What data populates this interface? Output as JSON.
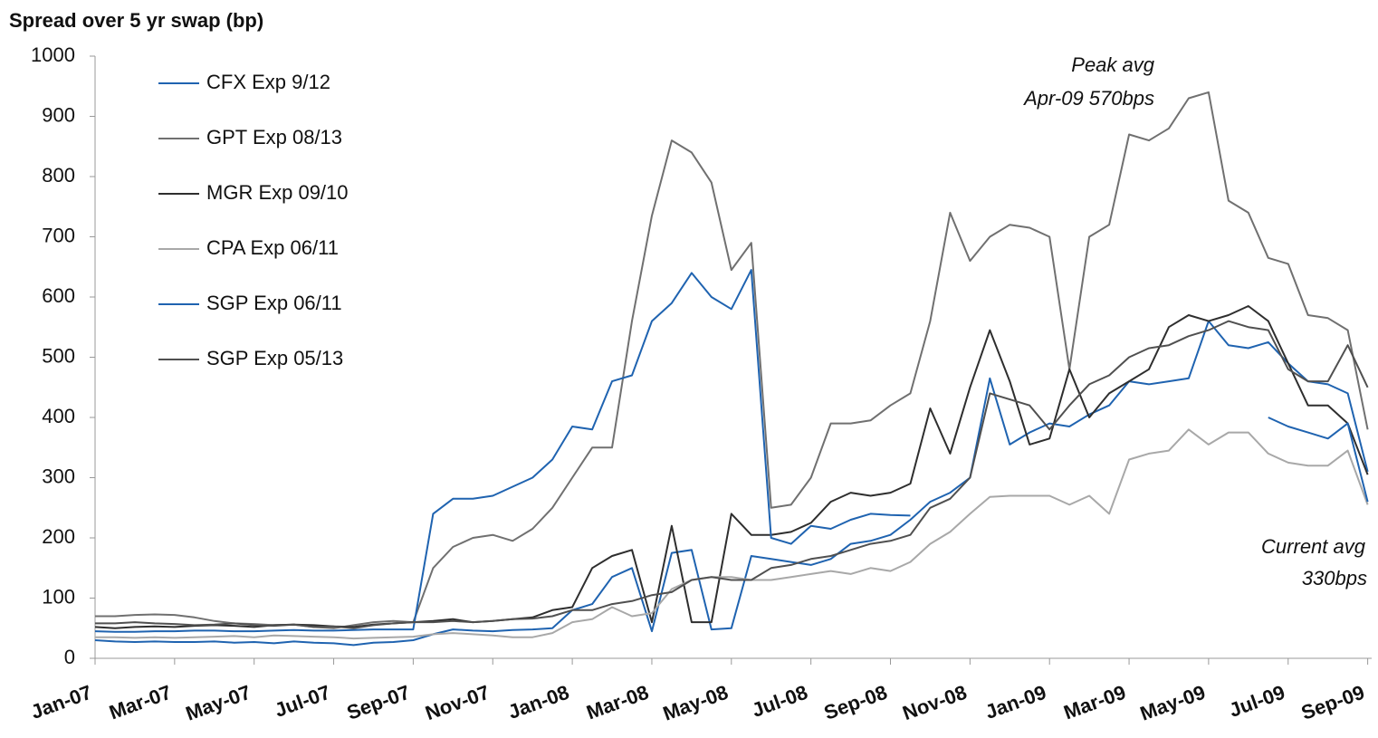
{
  "chart_data": {
    "type": "line",
    "title": "Spread over 5 yr swap (bp)",
    "annotations": [
      "Peak avg",
      "Apr-09 570bps",
      "Current avg",
      "330bps"
    ],
    "x": [
      0,
      0.5,
      1,
      1.5,
      2,
      2.5,
      3,
      3.5,
      4,
      4.5,
      5,
      5.5,
      6,
      6.5,
      7,
      7.5,
      8,
      8.5,
      9,
      9.5,
      10,
      10.5,
      11,
      11.5,
      12,
      12.5,
      13,
      13.5,
      14,
      14.5,
      15,
      15.5,
      16,
      16.5,
      17,
      17.5,
      18,
      18.5,
      19,
      19.5,
      20,
      20.5,
      21,
      21.5,
      22,
      22.5,
      23,
      23.5,
      24,
      24.5,
      25,
      25.5,
      26,
      26.5,
      27,
      27.5,
      28,
      28.5,
      29,
      29.5,
      30,
      30.5,
      31,
      31.5,
      32
    ],
    "xlim": [
      0,
      32.1
    ],
    "xticks": [
      {
        "value": 0,
        "label": "Jan-07"
      },
      {
        "value": 2,
        "label": "Mar-07"
      },
      {
        "value": 4,
        "label": "May-07"
      },
      {
        "value": 6,
        "label": "Jul-07"
      },
      {
        "value": 8,
        "label": "Sep-07"
      },
      {
        "value": 10,
        "label": "Nov-07"
      },
      {
        "value": 12,
        "label": "Jan-08"
      },
      {
        "value": 14,
        "label": "Mar-08"
      },
      {
        "value": 16,
        "label": "May-08"
      },
      {
        "value": 18,
        "label": "Jul-08"
      },
      {
        "value": 20,
        "label": "Sep-08"
      },
      {
        "value": 22,
        "label": "Nov-08"
      },
      {
        "value": 24,
        "label": "Jan-09"
      },
      {
        "value": 26,
        "label": "Mar-09"
      },
      {
        "value": 28,
        "label": "May-09"
      },
      {
        "value": 30,
        "label": "Jul-09"
      },
      {
        "value": 32,
        "label": "Sep-09"
      }
    ],
    "ylim": [
      0,
      1000
    ],
    "yticks": [
      0,
      100,
      200,
      300,
      400,
      500,
      600,
      700,
      800,
      900,
      1000
    ],
    "legend": "upper left",
    "series": [
      {
        "name": "CFX Exp 9/12",
        "color": "#1f63b0",
        "values": [
          30,
          28,
          27,
          28,
          27,
          27,
          28,
          26,
          27,
          25,
          28,
          26,
          25,
          22,
          26,
          27,
          30,
          40,
          48,
          46,
          45,
          47,
          48,
          50,
          80,
          90,
          135,
          150,
          45,
          175,
          180,
          48,
          50,
          170,
          165,
          160,
          155,
          165,
          190,
          195,
          205,
          230,
          260,
          275,
          300,
          465,
          355,
          375,
          390,
          385,
          405,
          420,
          460,
          455,
          460,
          465,
          560,
          520,
          515,
          525,
          490,
          460,
          455,
          440,
          310
        ]
      },
      {
        "name": "GPT Exp 08/13",
        "color": "#707070",
        "values": [
          70,
          70,
          72,
          73,
          72,
          68,
          62,
          58,
          57,
          55,
          56,
          52,
          50,
          55,
          60,
          62,
          60,
          150,
          185,
          200,
          205,
          195,
          215,
          250,
          300,
          350,
          350,
          560,
          735,
          860,
          840,
          790,
          645,
          690,
          250,
          255,
          300,
          390,
          390,
          395,
          420,
          440,
          560,
          740,
          660,
          700,
          720,
          715,
          700,
          480,
          700,
          720,
          870,
          860,
          880,
          930,
          940,
          760,
          740,
          665,
          655,
          570,
          565,
          545,
          380
        ]
      },
      {
        "name": "MGR Exp 09/10",
        "color": "#2e2e2e",
        "values": [
          52,
          50,
          52,
          53,
          52,
          54,
          55,
          54,
          52,
          55,
          56,
          55,
          53,
          52,
          56,
          58,
          60,
          62,
          65,
          60,
          62,
          65,
          68,
          80,
          85,
          150,
          170,
          180,
          60,
          220,
          60,
          60,
          240,
          205,
          205,
          210,
          225,
          260,
          275,
          270,
          275,
          290,
          415,
          340,
          450,
          545,
          460,
          355,
          365,
          480,
          400,
          440,
          460,
          480,
          550,
          570,
          560,
          570,
          585,
          560,
          490,
          420,
          420,
          390,
          305
        ]
      },
      {
        "name": "CPA Exp 06/11",
        "color": "#a8a8a8",
        "values": [
          35,
          35,
          34,
          35,
          34,
          35,
          36,
          37,
          35,
          38,
          37,
          36,
          35,
          33,
          34,
          35,
          36,
          40,
          42,
          40,
          38,
          35,
          35,
          42,
          60,
          65,
          85,
          70,
          75,
          115,
          130,
          135,
          135,
          130,
          130,
          135,
          140,
          145,
          140,
          150,
          145,
          160,
          190,
          210,
          240,
          268,
          270,
          270,
          270,
          255,
          270,
          240,
          330,
          340,
          345,
          380,
          355,
          375,
          375,
          340,
          325,
          320,
          320,
          345,
          255
        ]
      },
      {
        "name": "SGP Exp 06/11",
        "color": "#1f63b0",
        "values": [
          45,
          44,
          44,
          45,
          45,
          46,
          46,
          45,
          45,
          46,
          47,
          46,
          46,
          47,
          48,
          48,
          48,
          240,
          265,
          265,
          270,
          285,
          300,
          330,
          385,
          380,
          460,
          470,
          560,
          590,
          640,
          600,
          580,
          645,
          200,
          190,
          220,
          215,
          230,
          240,
          238,
          237,
          null,
          null,
          null,
          null,
          null,
          null,
          null,
          null,
          null,
          null,
          null,
          null,
          null,
          null,
          null,
          null,
          null,
          400,
          385,
          375,
          365,
          390,
          260
        ]
      },
      {
        "name": "SGP Exp 05/13",
        "color": "#505050",
        "values": [
          58,
          58,
          60,
          58,
          57,
          55,
          56,
          58,
          55,
          54,
          56,
          52,
          53,
          50,
          55,
          58,
          60,
          60,
          62,
          60,
          62,
          65,
          66,
          70,
          80,
          80,
          90,
          95,
          105,
          110,
          130,
          135,
          130,
          130,
          150,
          155,
          165,
          170,
          180,
          190,
          195,
          205,
          250,
          265,
          300,
          440,
          430,
          420,
          380,
          420,
          455,
          470,
          500,
          515,
          520,
          535,
          545,
          560,
          550,
          545,
          480,
          460,
          460,
          520,
          450
        ]
      }
    ]
  }
}
